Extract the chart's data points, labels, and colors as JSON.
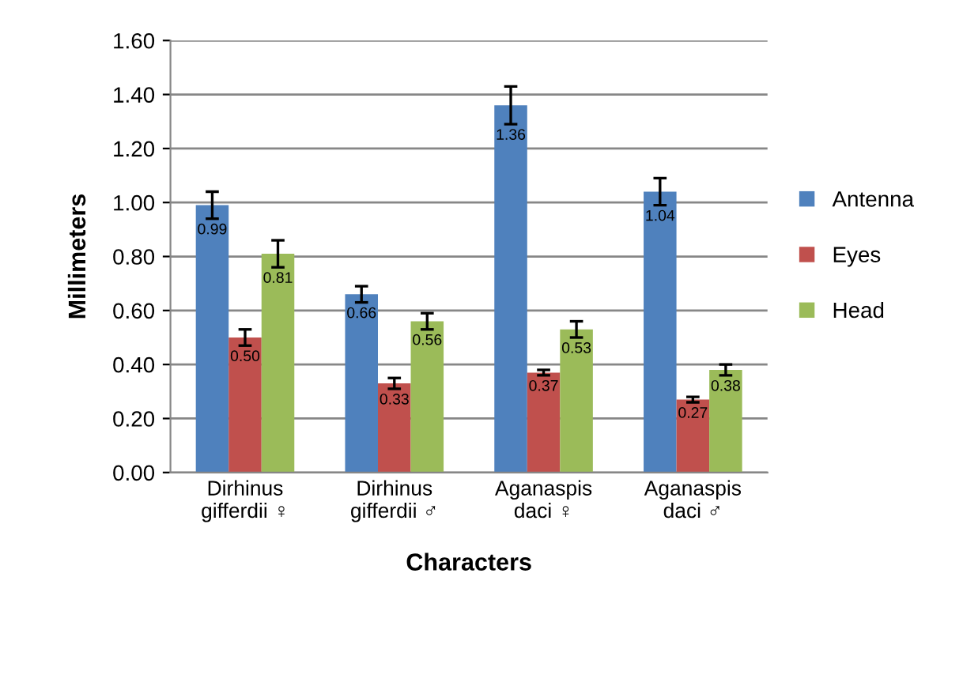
{
  "chart_data": {
    "type": "bar",
    "xlabel": "Characters",
    "ylabel": "Millimeters",
    "categories": [
      "Dirhinus\ngifferdii ♀",
      "Dirhinus\ngifferdii ♂",
      "Aganaspis\ndaci ♀",
      "Aganaspis\ndaci ♂"
    ],
    "series": [
      {
        "name": "Antenna",
        "color": "#4f81bd",
        "values": [
          0.99,
          0.66,
          1.36,
          1.04
        ],
        "value_labels": [
          "0.99",
          "0.66",
          "1.36",
          "1.04"
        ],
        "errors": [
          0.05,
          0.03,
          0.07,
          0.05
        ]
      },
      {
        "name": "Eyes",
        "color": "#c0504d",
        "values": [
          0.5,
          0.33,
          0.37,
          0.27
        ],
        "value_labels": [
          "0.50",
          "0.33",
          "0.37",
          "0.27"
        ],
        "errors": [
          0.03,
          0.02,
          0.01,
          0.01
        ]
      },
      {
        "name": "Head",
        "color": "#9bbb59",
        "values": [
          0.81,
          0.56,
          0.53,
          0.38
        ],
        "value_labels": [
          "0.81",
          "0.56",
          "0.53",
          "0.38"
        ],
        "errors": [
          0.05,
          0.03,
          0.03,
          0.02
        ]
      }
    ],
    "ylim": [
      0,
      1.6
    ],
    "yticks": [
      {
        "value": 0,
        "label": "0.00"
      },
      {
        "value": 0.2,
        "label": "0.20"
      },
      {
        "value": 0.4,
        "label": "0.40"
      },
      {
        "value": 0.6,
        "label": "0.60"
      },
      {
        "value": 0.8,
        "label": "0.80"
      },
      {
        "value": 1.0,
        "label": "1.00"
      },
      {
        "value": 1.2,
        "label": "1.20"
      },
      {
        "value": 1.4,
        "label": "1.40"
      },
      {
        "value": 1.6,
        "label": "1.60"
      }
    ],
    "grid": "y",
    "legend": "right"
  }
}
